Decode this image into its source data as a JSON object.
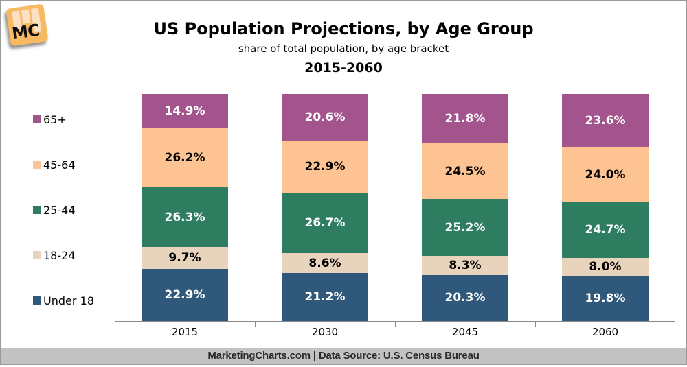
{
  "logo": {
    "text": "MC"
  },
  "header": {
    "title": "US Population Projections, by Age Group",
    "subtitle": "share of total population, by age bracket",
    "period": "2015-2060"
  },
  "chart_data": {
    "type": "bar",
    "variant": "stacked-100-percent",
    "categories": [
      "2015",
      "2030",
      "2045",
      "2060"
    ],
    "series": [
      {
        "name": "65+",
        "color": "#A4548C",
        "label_color": "#FFFFFF",
        "values": [
          14.9,
          20.6,
          21.8,
          23.6
        ]
      },
      {
        "name": "45-64",
        "color": "#FEC392",
        "label_color": "#000000",
        "values": [
          26.2,
          22.9,
          24.5,
          24.0
        ]
      },
      {
        "name": "25-44",
        "color": "#2E7D61",
        "label_color": "#FFFFFF",
        "values": [
          26.3,
          26.7,
          25.2,
          24.7
        ]
      },
      {
        "name": "18-24",
        "color": "#E8D3BC",
        "label_color": "#000000",
        "values": [
          9.7,
          8.6,
          8.3,
          8.0
        ]
      },
      {
        "name": "Under 18",
        "color": "#2F587A",
        "label_color": "#FFFFFF",
        "values": [
          22.9,
          21.2,
          20.3,
          19.8
        ]
      }
    ],
    "value_suffix": "%",
    "value_decimals": 1,
    "ylim": [
      0,
      100
    ],
    "grid": false,
    "legend_position": "left",
    "axis_color": "#8a8a8a"
  },
  "footer": {
    "text": "MarketingCharts.com | Data Source: U.S. Census Bureau"
  }
}
